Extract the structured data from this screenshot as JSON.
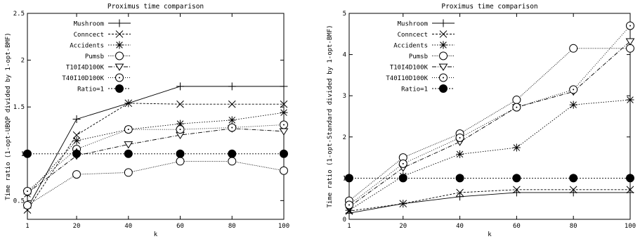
{
  "chart_data": [
    {
      "type": "line",
      "title": "Proximus time comparison",
      "xlabel": "k",
      "ylabel": "Time ratio (1-opt-UBQP divided by 1-opt-BMF)",
      "x": [
        1,
        20,
        40,
        60,
        80,
        100
      ],
      "x_ticks": [
        "1",
        "20",
        "40",
        "60",
        "80",
        "100"
      ],
      "ylim": [
        0.3,
        2.5
      ],
      "y_ticks": [
        "0.5",
        "1",
        "1.5",
        "2",
        "2.5"
      ],
      "grid": false,
      "legend_position": "top-left",
      "series": [
        {
          "name": "Mushroom",
          "marker": "plus",
          "dash": "",
          "values": [
            0.42,
            1.37,
            1.54,
            1.72,
            1.72,
            1.72
          ]
        },
        {
          "name": "Conncect",
          "marker": "cross",
          "dash": "3,2",
          "values": [
            0.4,
            1.2,
            1.54,
            1.53,
            1.53,
            1.53
          ]
        },
        {
          "name": "Accidents",
          "marker": "star",
          "dash": "1.5,2",
          "values": [
            0.57,
            1.14,
            1.26,
            1.32,
            1.36,
            1.44
          ]
        },
        {
          "name": "Pumsb",
          "marker": "circle",
          "dash": "1,1.5",
          "values": [
            0.45,
            0.78,
            0.8,
            0.92,
            0.92,
            0.82
          ]
        },
        {
          "name": "T10I4D100K",
          "marker": "triangle",
          "dash": "6,2,1,2",
          "values": [
            0.58,
            0.98,
            1.1,
            1.2,
            1.27,
            1.24
          ]
        },
        {
          "name": "T40I10D100K",
          "marker": "dotcircle",
          "dash": "1,2",
          "values": [
            0.6,
            1.05,
            1.26,
            1.26,
            1.28,
            1.31
          ]
        },
        {
          "name": "Ratio=1",
          "marker": "filledcircle",
          "dash": "2,2",
          "values": [
            1,
            1,
            1,
            1,
            1,
            1
          ]
        }
      ]
    },
    {
      "type": "line",
      "title": "Proximus time comparison",
      "xlabel": "k",
      "ylabel": "Time ratio (1-opt-Standard divided by 1-opt-BMF)",
      "x": [
        1,
        20,
        40,
        60,
        80,
        100
      ],
      "x_ticks": [
        "1",
        "20",
        "40",
        "60",
        "80",
        "100"
      ],
      "ylim": [
        0,
        5
      ],
      "y_ticks": [
        "0",
        "1",
        "2",
        "3",
        "4",
        "5"
      ],
      "grid": false,
      "legend_position": "top-left",
      "series": [
        {
          "name": "Mushroom",
          "marker": "plus",
          "dash": "",
          "values": [
            0.15,
            0.38,
            0.55,
            0.65,
            0.65,
            0.65
          ]
        },
        {
          "name": "Conncect",
          "marker": "cross",
          "dash": "3,2",
          "values": [
            0.2,
            0.38,
            0.65,
            0.72,
            0.72,
            0.72
          ]
        },
        {
          "name": "Accidents",
          "marker": "star",
          "dash": "1.5,2",
          "values": [
            0.22,
            1.05,
            1.58,
            1.74,
            2.78,
            2.9
          ]
        },
        {
          "name": "Pumsb",
          "marker": "circle",
          "dash": "1,1.5",
          "values": [
            0.45,
            1.5,
            2.08,
            2.9,
            4.15,
            4.15
          ]
        },
        {
          "name": "T10I4D100K",
          "marker": "triangle",
          "dash": "6,2,1,2",
          "values": [
            0.3,
            1.25,
            1.88,
            2.72,
            3.1,
            4.32
          ]
        },
        {
          "name": "T40I10D100K",
          "marker": "dotcircle",
          "dash": "1,2",
          "values": [
            0.35,
            1.35,
            1.98,
            2.72,
            3.15,
            4.7
          ]
        },
        {
          "name": "Ratio=1",
          "marker": "filledcircle",
          "dash": "2,2",
          "values": [
            1,
            1,
            1,
            1,
            1,
            1
          ]
        }
      ]
    }
  ]
}
